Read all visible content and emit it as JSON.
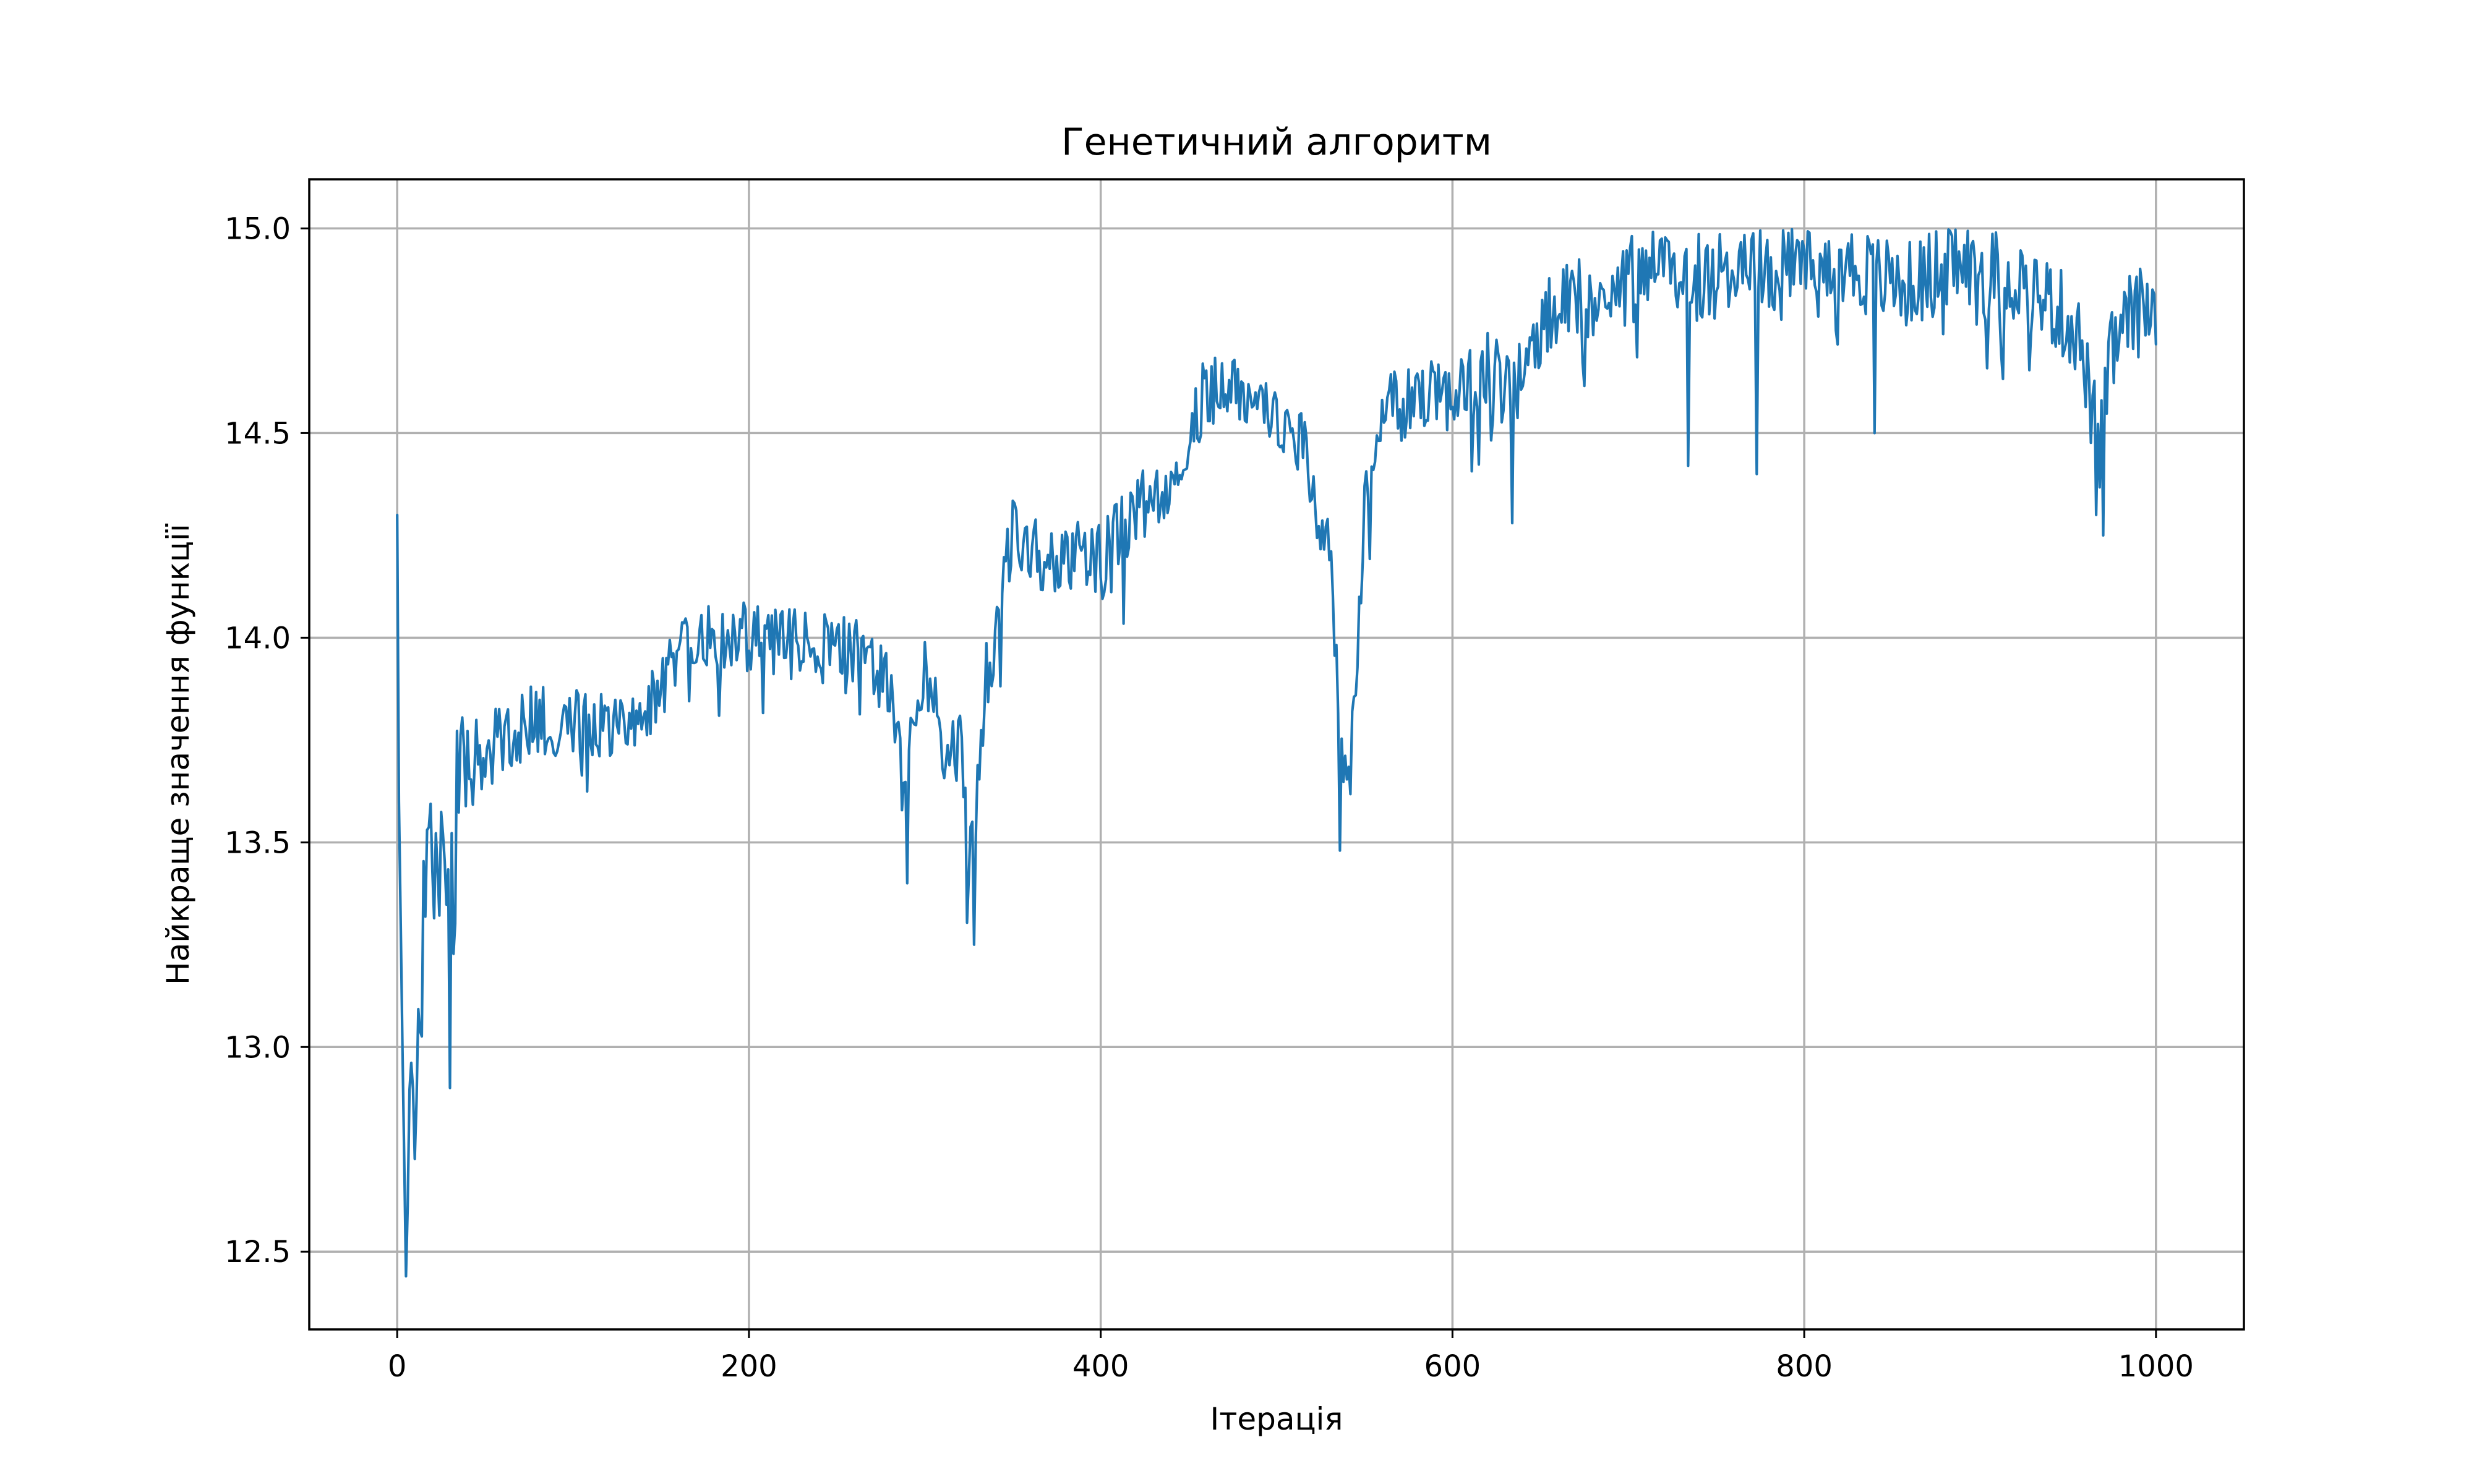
{
  "chart_data": {
    "type": "line",
    "title": "Генетичний алгоритм",
    "xlabel": "Ітерація",
    "ylabel": "Найкраще значення функції",
    "xlim": [
      -50,
      1050
    ],
    "ylim": [
      12.31,
      15.12
    ],
    "xticks": [
      0,
      200,
      400,
      600,
      800,
      1000
    ],
    "xtick_labels": [
      "0",
      "200",
      "400",
      "600",
      "800",
      "1000"
    ],
    "yticks": [
      12.5,
      13.0,
      13.5,
      14.0,
      14.5,
      15.0
    ],
    "ytick_labels": [
      "12.5",
      "13.0",
      "13.5",
      "14.0",
      "14.5",
      "15.0"
    ],
    "grid": true,
    "legend": "none",
    "series_color": "#1f77b4",
    "anchors_x": [
      0,
      1,
      3,
      5,
      8,
      12,
      15,
      20,
      25,
      28,
      30,
      35,
      40,
      50,
      60,
      70,
      80,
      90,
      100,
      120,
      140,
      160,
      180,
      200,
      220,
      240,
      260,
      275,
      282,
      288,
      292,
      300,
      305,
      312,
      320,
      325,
      330,
      335,
      340,
      345,
      350,
      360,
      370,
      380,
      400,
      420,
      440,
      450,
      460,
      470,
      490,
      500,
      510,
      520,
      525,
      530,
      535,
      540,
      545,
      550,
      560,
      580,
      600,
      620,
      630,
      640,
      650,
      660,
      680,
      700,
      720,
      740,
      760,
      780,
      800,
      820,
      840,
      860,
      870,
      880,
      900,
      920,
      940,
      955,
      962,
      968,
      975,
      985,
      1000
    ],
    "anchors_y": [
      14.3,
      13.6,
      13.0,
      12.44,
      12.85,
      13.0,
      13.3,
      13.5,
      13.55,
      13.2,
      13.3,
      13.65,
      13.7,
      13.72,
      13.75,
      13.78,
      13.8,
      13.8,
      13.8,
      13.8,
      13.82,
      13.95,
      14.0,
      14.0,
      13.98,
      13.98,
      13.97,
      13.9,
      13.85,
      13.6,
      13.75,
      13.95,
      13.85,
      13.7,
      13.75,
      13.5,
      13.6,
      13.9,
      13.95,
      14.15,
      14.25,
      14.22,
      14.2,
      14.2,
      14.2,
      14.3,
      14.4,
      14.5,
      14.6,
      14.62,
      14.6,
      14.55,
      14.5,
      14.4,
      14.25,
      14.2,
      13.9,
      13.6,
      13.85,
      14.35,
      14.55,
      14.58,
      14.6,
      14.65,
      14.6,
      14.65,
      14.75,
      14.8,
      14.83,
      14.87,
      14.9,
      14.88,
      14.9,
      14.9,
      14.9,
      14.92,
      14.88,
      14.86,
      14.88,
      14.92,
      14.9,
      14.88,
      14.82,
      14.75,
      14.6,
      14.45,
      14.7,
      14.78,
      14.82
    ],
    "dips": [
      [
        290,
        13.4
      ],
      [
        328,
        13.25
      ],
      [
        536,
        13.48
      ],
      [
        547,
        14.1
      ],
      [
        734,
        14.42
      ],
      [
        773,
        14.4
      ],
      [
        840,
        14.5
      ],
      [
        966,
        14.3
      ],
      [
        970,
        14.25
      ],
      [
        30,
        12.9
      ],
      [
        634,
        14.28
      ]
    ]
  }
}
